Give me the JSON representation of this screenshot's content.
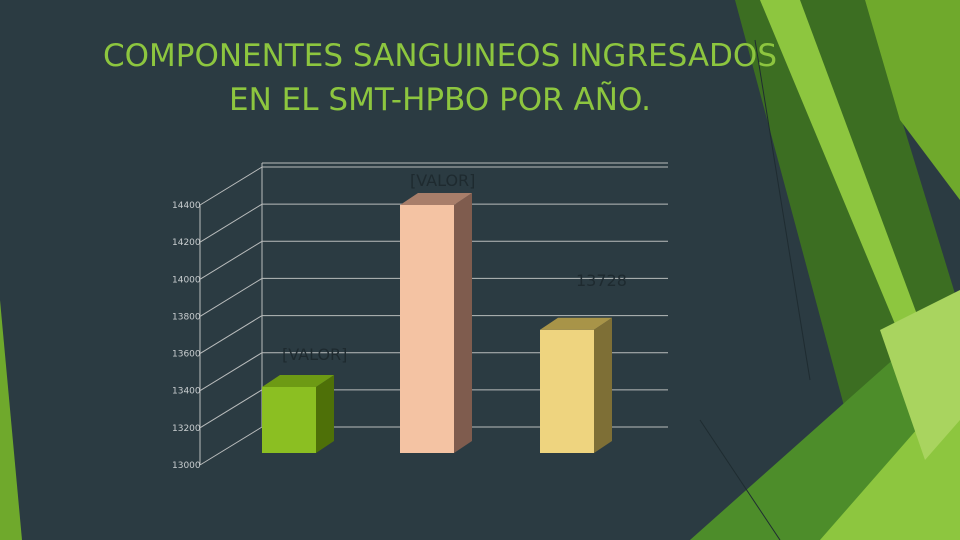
{
  "title_lines": [
    "COMPONENTES SANGUINEOS INGRESADOS",
    "EN EL SMT-HPBO POR AÑO."
  ],
  "colors": {
    "background": "#2b3b42",
    "accent_green": "#8dc63f",
    "grid": "#b9bcbc",
    "text_dark": "#1e2a2f"
  },
  "chart_data": {
    "type": "bar",
    "title": "",
    "xlabel": "",
    "ylabel": "",
    "ylim": [
      13000,
      14400
    ],
    "yticks": [
      13000,
      13200,
      13400,
      13600,
      13800,
      14000,
      14200,
      14400
    ],
    "grid": true,
    "legend": "none",
    "style": "3d-column",
    "bars": [
      {
        "value": 13420,
        "label": "[VALOR]",
        "front": "#8bbf22",
        "top": "#6d9a14",
        "side": "#4e7008"
      },
      {
        "value": 14400,
        "label": "[VALOR]",
        "front": "#f4c3a3",
        "top": "#a87e6a",
        "side": "#7f5c4e"
      },
      {
        "value": 13728,
        "label": "13728",
        "front": "#eed47f",
        "top": "#a89448",
        "side": "#7e6f36"
      }
    ]
  }
}
